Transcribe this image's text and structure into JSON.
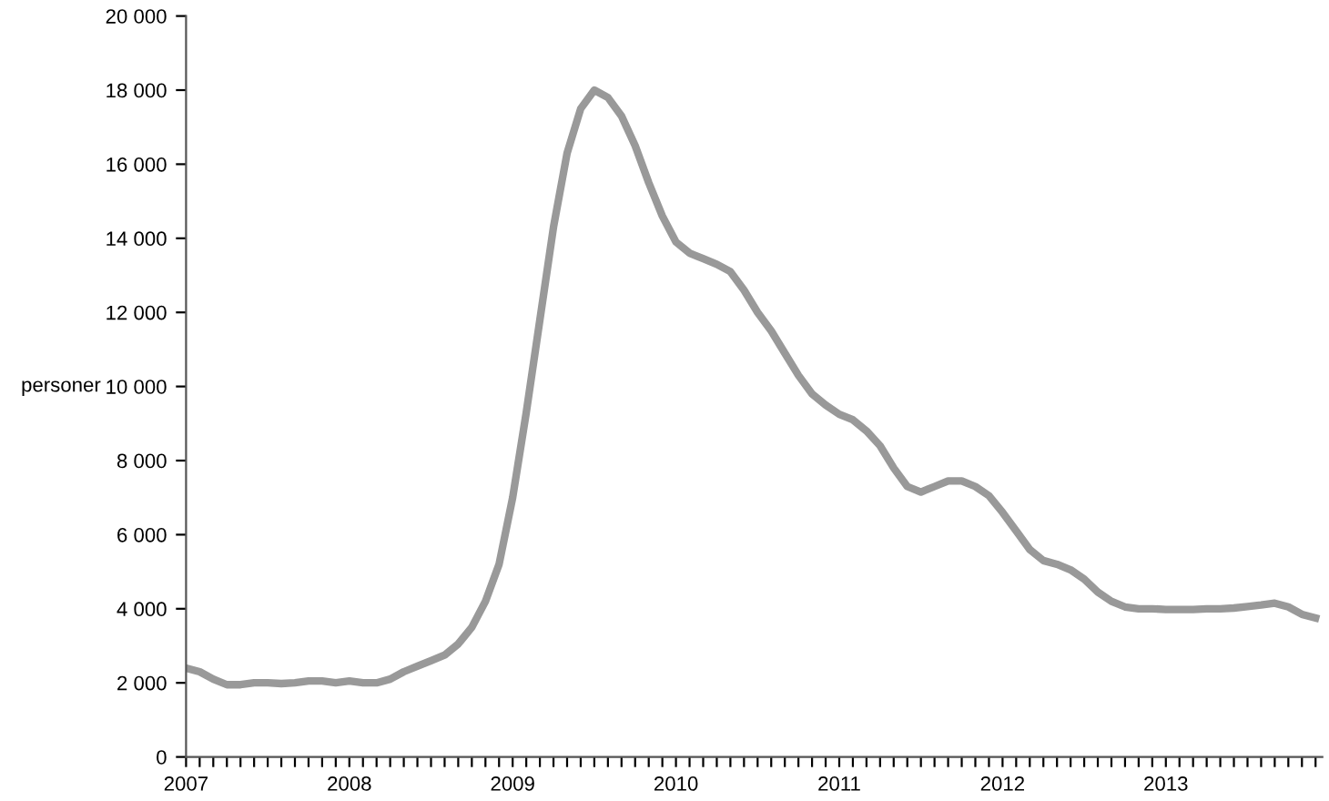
{
  "chart_data": {
    "type": "line",
    "ylabel": "personer",
    "categories": [
      "2007",
      null,
      null,
      null,
      null,
      null,
      null,
      null,
      null,
      null,
      null,
      null,
      "2008",
      null,
      null,
      null,
      null,
      null,
      null,
      null,
      null,
      null,
      null,
      null,
      "2009",
      null,
      null,
      null,
      null,
      null,
      null,
      null,
      null,
      null,
      null,
      null,
      "2010",
      null,
      null,
      null,
      null,
      null,
      null,
      null,
      null,
      null,
      null,
      null,
      "2011",
      null,
      null,
      null,
      null,
      null,
      null,
      null,
      null,
      null,
      null,
      null,
      "2012",
      null,
      null,
      null,
      null,
      null,
      null,
      null,
      null,
      null,
      null,
      null,
      "2013",
      null,
      null,
      null,
      null,
      null,
      null,
      null,
      null,
      null,
      null,
      null
    ],
    "series": [
      {
        "color": "#999999",
        "values": [
          2400,
          2300,
          2100,
          1950,
          1950,
          2000,
          2000,
          1980,
          2000,
          2050,
          2050,
          2000,
          2050,
          2000,
          2000,
          2100,
          2300,
          2450,
          2600,
          2750,
          3050,
          3500,
          4200,
          5200,
          7000,
          9300,
          11800,
          14300,
          16300,
          17500,
          18000,
          17800,
          17300,
          16500,
          15500,
          14600,
          13900,
          13600,
          13450,
          13300,
          13100,
          12600,
          12000,
          11500,
          10900,
          10300,
          9800,
          9500,
          9250,
          9100,
          8800,
          8400,
          7800,
          7300,
          7150,
          7300,
          7450,
          7450,
          7300,
          7050,
          6600,
          6100,
          5600,
          5300,
          5200,
          5050,
          4800,
          4450,
          4200,
          4050,
          4000,
          4000,
          3980,
          3980,
          3980,
          4000,
          4000,
          4020,
          4060,
          4100,
          4150,
          4050,
          3850,
          3750
        ]
      }
    ],
    "ylim": [
      0,
      20000
    ],
    "yticks": [
      0,
      {
        "value": 2000,
        "label": "2 000"
      },
      {
        "value": 4000,
        "label": "4 000"
      },
      {
        "value": 6000,
        "label": "6 000"
      },
      {
        "value": 8000,
        "label": "8 000"
      },
      {
        "value": 10000,
        "label": "10 000"
      },
      {
        "value": 12000,
        "label": "12 000"
      },
      {
        "value": 14000,
        "label": "14 000"
      },
      {
        "value": 16000,
        "label": "16 000"
      },
      {
        "value": 18000,
        "label": "18 000"
      },
      {
        "value": 20000,
        "label": "20 000"
      }
    ],
    "grid": false,
    "marker": "none",
    "line_style": "solid"
  }
}
